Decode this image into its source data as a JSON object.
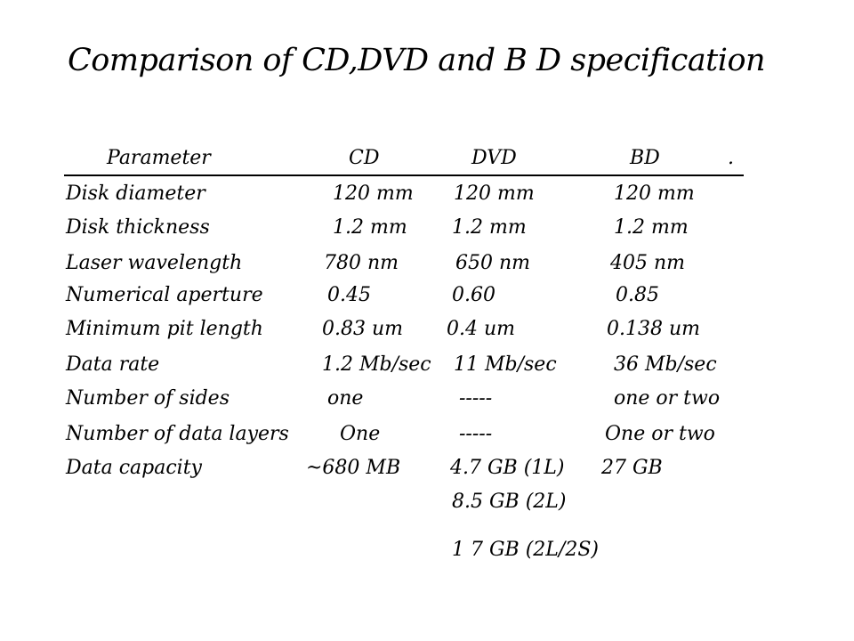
{
  "title": "Comparison of CD,DVD and B D specification",
  "header": {
    "parameter": "Parameter",
    "cd": "CD",
    "dvd": "DVD",
    "bd": "BD",
    "end_mark": "."
  },
  "rows": [
    {
      "parameter": "Disk diameter",
      "cd": "120 mm",
      "dvd": "120 mm",
      "bd": "120 mm"
    },
    {
      "parameter": "Disk thickness",
      "cd": "1.2 mm",
      "dvd": "1.2 mm",
      "bd": "1.2 mm"
    },
    {
      "parameter": "Laser wavelength",
      "cd": "780 nm",
      "dvd": "650 nm",
      "bd": "405 nm"
    },
    {
      "parameter": "Numerical aperture",
      "cd": "0.45",
      "dvd": "0.60",
      "bd": "0.85"
    },
    {
      "parameter": "Minimum pit length",
      "cd": "0.83 um",
      "dvd": "0.4 um",
      "bd": "0.138 um"
    },
    {
      "parameter": "Data rate",
      "cd": "1.2 Mb/sec",
      "dvd": "11 Mb/sec",
      "bd": "36 Mb/sec"
    },
    {
      "parameter": "Number of sides",
      "cd": "one",
      "dvd": "-----",
      "bd": "one or two"
    },
    {
      "parameter": "Number of data layers",
      "cd": "One",
      "dvd": "-----",
      "bd": "One or two"
    },
    {
      "parameter": "Data capacity",
      "cd": "~680 MB",
      "dvd": "4.7 GB (1L)",
      "bd": "27 GB"
    }
  ],
  "extra_capacity": [
    "8.5 GB (2L)",
    "1 7 GB (2L/2S)"
  ]
}
